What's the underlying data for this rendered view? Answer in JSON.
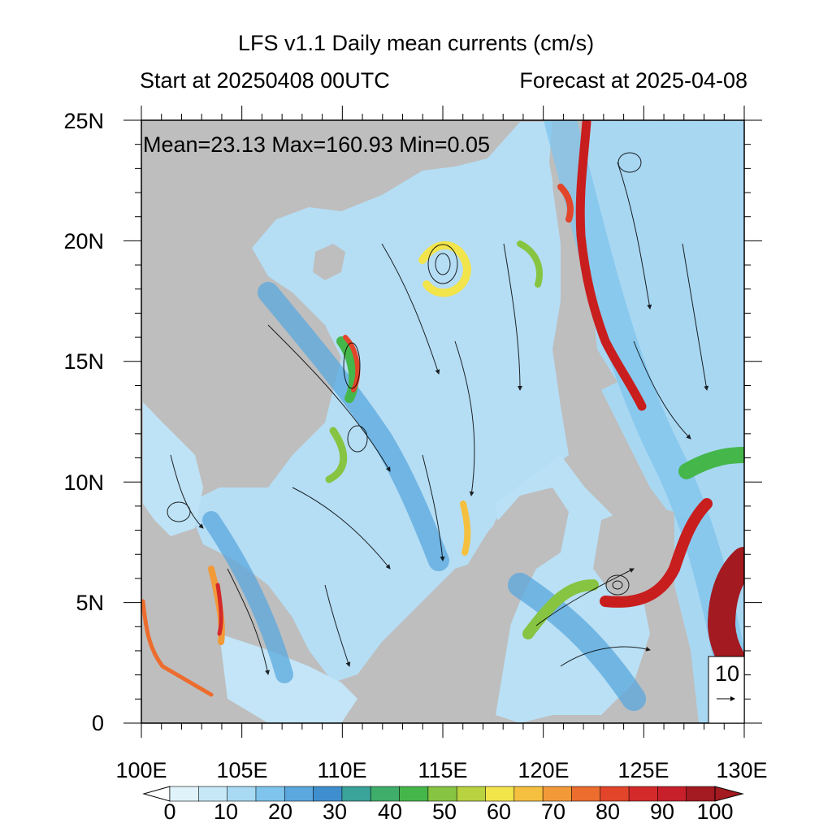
{
  "header": {
    "title": "LFS v1.1 Daily mean currents (cm/s)",
    "start_label": "Start at 20250408 00UTC",
    "forecast_label": "Forecast at 2025-04-08"
  },
  "stats": {
    "text": "Mean=23.13  Max=160.93  Min=0.05"
  },
  "reference_vector": {
    "value": "10",
    "arrow": "→"
  },
  "map_extent": {
    "lon_range": [
      100,
      130
    ],
    "lat_range": [
      0,
      25
    ]
  },
  "axes": {
    "x_ticks": [
      "100E",
      "105E",
      "110E",
      "115E",
      "120E",
      "125E",
      "130E"
    ],
    "y_ticks": [
      "0",
      "5N",
      "10N",
      "15N",
      "20N",
      "25N"
    ]
  },
  "colorbar": {
    "labels": [
      "0",
      "10",
      "20",
      "30",
      "40",
      "50",
      "60",
      "70",
      "80",
      "90",
      "100"
    ],
    "colors": [
      "#e0f3fb",
      "#c6e8f7",
      "#a8daf3",
      "#7fc4ec",
      "#5aa8de",
      "#3f8fcf",
      "#3aa39a",
      "#3fae6a",
      "#45b74a",
      "#86c441",
      "#b8d240",
      "#f2e44b",
      "#f5c03f",
      "#f29a38",
      "#ec6d2e",
      "#e2452a",
      "#d42a2a",
      "#c8202a",
      "#a31a20"
    ]
  },
  "colors": {
    "land": "#bebebe",
    "ocean_low": "#dff1fb",
    "ocean_mid": "#7fc0ea",
    "jet": "#c81e1e"
  }
}
